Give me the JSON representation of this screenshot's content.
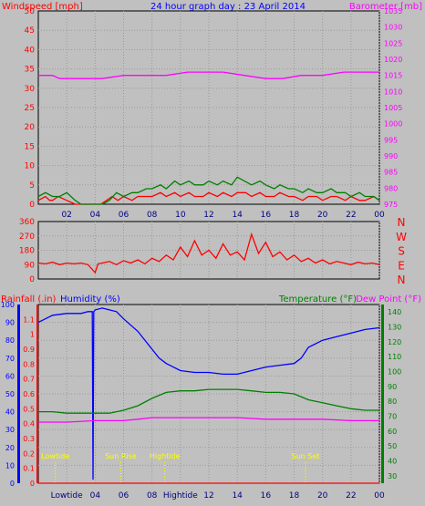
{
  "chart_data": [
    {
      "type": "line",
      "title": "24 hour graph day : 23 April 2014",
      "left_axis_label": "Windspeed [mph]",
      "right_axis_label": "Barometer [mb]",
      "xticks": [
        "02",
        "04",
        "06",
        "08",
        "10",
        "12",
        "14",
        "16",
        "18",
        "20",
        "22",
        "00"
      ],
      "x_range_hours": [
        0,
        24
      ],
      "left_ticks": [
        0,
        5,
        10,
        15,
        20,
        25,
        30,
        35,
        40,
        45,
        50
      ],
      "left_range": [
        0,
        50
      ],
      "right_ticks": [
        975,
        980,
        985,
        990,
        995,
        1000,
        1005,
        1010,
        1015,
        1020,
        1025,
        1030,
        1035
      ],
      "right_range": [
        975,
        1035
      ],
      "grid": true,
      "series": [
        {
          "color": "#ff00ff",
          "axis": "right",
          "x": [
            0,
            1,
            1.5,
            3.2,
            4.5,
            6,
            7.5,
            9,
            10.5,
            13,
            14.5,
            16,
            17.2,
            18.5,
            20,
            21.5,
            24
          ],
          "y": [
            1015,
            1015,
            1014,
            1014,
            1014,
            1015,
            1015,
            1015,
            1016,
            1016,
            1015,
            1014,
            1014,
            1015,
            1015,
            1016,
            1016
          ]
        },
        {
          "color": "#ff0000",
          "axis": "left",
          "x": [
            0,
            0.5,
            0.8,
            1.0,
            1.4,
            2.0,
            2.6,
            3.0,
            3.4,
            4.0,
            4.4,
            4.8,
            5.2,
            5.6,
            6.0,
            6.6,
            7.0,
            7.6,
            8.0,
            8.6,
            9.0,
            9.6,
            10.0,
            10.6,
            11.0,
            11.6,
            12.0,
            12.6,
            13.0,
            13.6,
            14.0,
            14.6,
            15.0,
            15.6,
            16.0,
            16.6,
            17.0,
            17.6,
            18.0,
            18.6,
            19.0,
            19.6,
            20.0,
            20.6,
            21.0,
            21.6,
            22.0,
            22.6,
            23.0,
            23.6,
            24.0
          ],
          "y": [
            1,
            2,
            1,
            1,
            2,
            1,
            0,
            0,
            0,
            0,
            0,
            1,
            2,
            1,
            2,
            1,
            2,
            2,
            2,
            3,
            2,
            3,
            2,
            3,
            2,
            2,
            3,
            2,
            3,
            2,
            3,
            3,
            2,
            3,
            2,
            2,
            3,
            2,
            2,
            1,
            2,
            2,
            1,
            2,
            2,
            1,
            2,
            1,
            1,
            2,
            1
          ]
        },
        {
          "color": "#008000",
          "axis": "left",
          "x": [
            0,
            0.5,
            1.0,
            1.5,
            2.0,
            2.6,
            3.0,
            3.5,
            4.0,
            4.5,
            5.0,
            5.5,
            6.0,
            6.6,
            7.0,
            7.6,
            8.0,
            8.6,
            9.0,
            9.6,
            10.0,
            10.6,
            11.0,
            11.6,
            12.0,
            12.6,
            13.0,
            13.6,
            14.0,
            14.5,
            15.0,
            15.6,
            16.0,
            16.6,
            17.0,
            17.6,
            18.0,
            18.6,
            19.0,
            19.6,
            20.0,
            20.6,
            21.0,
            21.6,
            22.0,
            22.6,
            23.0,
            23.6,
            24.0
          ],
          "y": [
            2,
            3,
            2,
            2,
            3,
            1,
            0,
            0,
            0,
            0,
            1,
            3,
            2,
            3,
            3,
            4,
            4,
            5,
            4,
            6,
            5,
            6,
            5,
            5,
            6,
            5,
            6,
            5,
            7,
            6,
            5,
            6,
            5,
            4,
            5,
            4,
            4,
            3,
            4,
            3,
            3,
            4,
            3,
            3,
            2,
            3,
            2,
            2,
            1
          ]
        }
      ]
    },
    {
      "type": "line",
      "right_labels": [
        "N",
        "W",
        "S",
        "E",
        "N"
      ],
      "xticks": [
        "02",
        "04",
        "06",
        "08",
        "10",
        "12",
        "14",
        "16",
        "18",
        "20",
        "22",
        "00"
      ],
      "x_range_hours": [
        0,
        24
      ],
      "left_ticks": [
        0,
        90,
        180,
        270,
        360
      ],
      "left_range": [
        0,
        360
      ],
      "grid": true,
      "series": [
        {
          "color": "#ff0000",
          "x": [
            0,
            0.5,
            1.0,
            1.5,
            2.0,
            2.5,
            3.0,
            3.5,
            4.0,
            4.2,
            4.5,
            5.0,
            5.5,
            6.0,
            6.5,
            7.0,
            7.5,
            8.0,
            8.5,
            9.0,
            9.5,
            10.0,
            10.5,
            11.0,
            11.5,
            12.0,
            12.5,
            13.0,
            13.5,
            14.0,
            14.5,
            15.0,
            15.5,
            16.0,
            16.5,
            17.0,
            17.5,
            18.0,
            18.5,
            19.0,
            19.5,
            20.0,
            20.5,
            21.0,
            21.5,
            22.0,
            22.5,
            23.0,
            23.5,
            24.0
          ],
          "y": [
            100,
            95,
            105,
            90,
            100,
            95,
            100,
            90,
            40,
            95,
            100,
            110,
            90,
            115,
            100,
            120,
            95,
            130,
            110,
            150,
            120,
            200,
            140,
            240,
            150,
            180,
            130,
            220,
            150,
            170,
            120,
            280,
            160,
            230,
            140,
            170,
            120,
            150,
            110,
            130,
            100,
            120,
            95,
            110,
            100,
            90,
            105,
            95,
            100,
            90
          ]
        }
      ]
    },
    {
      "type": "line",
      "left_axis_label_1": "Rainfall (.in)",
      "left_axis_label_2": "Humidity (%)",
      "right_axis_label_1": "Temperature (°F)",
      "right_axis_label_2": "Dew Point (°F)",
      "xticks": [
        "02",
        "04",
        "06",
        "08",
        "10",
        "12",
        "14",
        "16",
        "18",
        "20",
        "22",
        "00"
      ],
      "x_range_hours": [
        0,
        24
      ],
      "humidity_ticks": [
        0,
        10,
        20,
        30,
        40,
        50,
        60,
        70,
        80,
        90,
        100
      ],
      "humidity_range": [
        0,
        100
      ],
      "rain_ticks": [
        "0",
        "0.1",
        "0.2",
        "0.3",
        "0.4",
        "0.5",
        "0.6",
        "0.7",
        "0.8",
        "0.9",
        "1",
        "1.1"
      ],
      "rain_range": [
        0,
        1.2
      ],
      "temp_ticks": [
        30,
        40,
        50,
        60,
        70,
        80,
        90,
        100,
        110,
        120,
        130,
        140
      ],
      "temp_range": [
        25,
        145
      ],
      "grid": true,
      "annotations": [
        {
          "label": "Lowtide",
          "x": 1.2
        },
        {
          "label": "Sun Rise",
          "x": 5.8
        },
        {
          "label": "Hightide",
          "x": 8.9
        },
        {
          "label": "Sun Set",
          "x": 18.8
        }
      ],
      "bottom_tick_labels": [
        "Lowtide",
        "04",
        "06",
        "08",
        "Hightide",
        "12",
        "14",
        "16",
        "18",
        "20",
        "22",
        "00"
      ],
      "series": [
        {
          "name": "Humidity (%)",
          "color": "#0000ff",
          "axis": "humidity",
          "x": [
            0,
            0.5,
            1.0,
            2.0,
            3.0,
            3.5,
            3.8,
            3.85,
            3.9,
            4.0,
            4.5,
            5.0,
            5.5,
            6.0,
            7.0,
            8.0,
            8.5,
            9.0,
            9.5,
            10.0,
            11.0,
            12.0,
            13.0,
            14.0,
            15.0,
            16.0,
            17.0,
            18.0,
            18.5,
            19.0,
            20.0,
            21.0,
            22.0,
            23.0,
            24.0
          ],
          "y": [
            90,
            92,
            94,
            95,
            95,
            96,
            96,
            2,
            96,
            97,
            98,
            97,
            96,
            92,
            85,
            75,
            70,
            67,
            65,
            63,
            62,
            62,
            61,
            61,
            63,
            65,
            66,
            67,
            70,
            76,
            80,
            82,
            84,
            86,
            87
          ]
        },
        {
          "name": "Temperature (°F)",
          "color": "#008000",
          "axis": "temp",
          "x": [
            0,
            1,
            2,
            3,
            4,
            5,
            6,
            7,
            8,
            9,
            10,
            11,
            12,
            13,
            14,
            15,
            16,
            17,
            18,
            19,
            20,
            21,
            22,
            23,
            24
          ],
          "y": [
            73,
            73,
            72,
            72,
            72,
            72,
            74,
            77,
            82,
            86,
            87,
            87,
            88,
            88,
            88,
            87,
            86,
            86,
            85,
            81,
            79,
            77,
            75,
            74,
            74
          ]
        },
        {
          "name": "Dew Point (°F)",
          "color": "#ff00ff",
          "axis": "temp",
          "x": [
            0,
            2,
            4,
            6,
            7,
            8,
            10,
            12,
            14,
            16,
            18,
            20,
            22,
            24
          ],
          "y": [
            66,
            66,
            67,
            67,
            68,
            69,
            69,
            69,
            69,
            68,
            68,
            68,
            67,
            67
          ]
        },
        {
          "name": "Rainfall (.in)",
          "color": "#ff0000",
          "axis": "rain",
          "x": [
            0,
            24
          ],
          "y": [
            0,
            0
          ]
        }
      ]
    }
  ]
}
